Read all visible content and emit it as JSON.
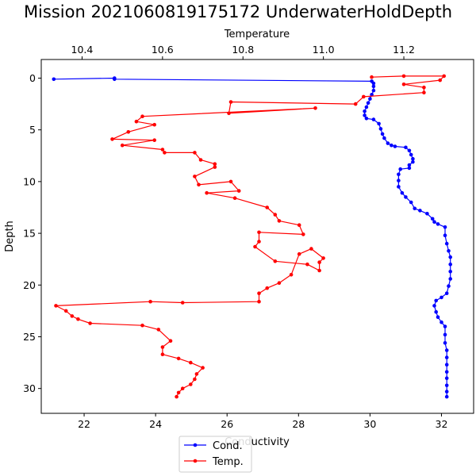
{
  "chart_data": {
    "type": "line",
    "title": "Mission 2021060819175172 UnderwaterHoldDepth",
    "ylabel": "Depth",
    "ylim": [
      32.4,
      -1.8
    ],
    "yticks": [
      "0",
      "5",
      "10",
      "15",
      "20",
      "25",
      "30"
    ],
    "bottom_axis": {
      "label": "Conductivity",
      "lim": [
        20.8,
        32.9
      ],
      "ticks": [
        "22",
        "24",
        "26",
        "28",
        "30",
        "32"
      ]
    },
    "top_axis": {
      "label": "Temperature",
      "lim": [
        10.2985,
        11.3735
      ],
      "ticks": [
        "10.4",
        "10.6",
        "10.8",
        "11.0",
        "11.2"
      ]
    },
    "legend": {
      "placement": "lower-center-outside"
    },
    "series": [
      {
        "name": "Cond.",
        "axis": "bottom",
        "color": "#0000ff",
        "points": [
          [
            21.15,
            0.1
          ],
          [
            22.85,
            0.0
          ],
          [
            22.85,
            0.1
          ],
          [
            30.05,
            0.3
          ],
          [
            30.1,
            0.5
          ],
          [
            30.1,
            0.8
          ],
          [
            30.1,
            1.2
          ],
          [
            30.05,
            1.6
          ],
          [
            30.0,
            2.0
          ],
          [
            29.95,
            2.4
          ],
          [
            29.9,
            2.8
          ],
          [
            29.85,
            3.2
          ],
          [
            29.85,
            3.6
          ],
          [
            29.9,
            3.9
          ],
          [
            30.1,
            4.0
          ],
          [
            30.25,
            4.4
          ],
          [
            30.3,
            4.9
          ],
          [
            30.35,
            5.4
          ],
          [
            30.4,
            5.8
          ],
          [
            30.5,
            6.3
          ],
          [
            30.6,
            6.5
          ],
          [
            30.7,
            6.6
          ],
          [
            31.0,
            6.7
          ],
          [
            31.1,
            7.0
          ],
          [
            31.15,
            7.4
          ],
          [
            31.2,
            7.8
          ],
          [
            31.2,
            8.1
          ],
          [
            31.1,
            8.4
          ],
          [
            31.1,
            8.7
          ],
          [
            30.85,
            8.8
          ],
          [
            30.8,
            9.3
          ],
          [
            30.8,
            9.9
          ],
          [
            30.8,
            10.5
          ],
          [
            30.9,
            11.1
          ],
          [
            31.0,
            11.5
          ],
          [
            31.15,
            12.0
          ],
          [
            31.25,
            12.6
          ],
          [
            31.4,
            12.8
          ],
          [
            31.6,
            13.1
          ],
          [
            31.75,
            13.6
          ],
          [
            31.8,
            13.9
          ],
          [
            31.9,
            14.1
          ],
          [
            32.1,
            14.4
          ],
          [
            32.1,
            15.2
          ],
          [
            32.15,
            16.0
          ],
          [
            32.2,
            16.7
          ],
          [
            32.25,
            17.3
          ],
          [
            32.25,
            18.0
          ],
          [
            32.25,
            18.7
          ],
          [
            32.25,
            19.4
          ],
          [
            32.2,
            20.1
          ],
          [
            32.15,
            20.8
          ],
          [
            32.0,
            21.2
          ],
          [
            31.85,
            21.5
          ],
          [
            31.8,
            22.0
          ],
          [
            31.85,
            22.6
          ],
          [
            31.9,
            23.1
          ],
          [
            32.0,
            23.6
          ],
          [
            32.1,
            24.0
          ],
          [
            32.1,
            24.8
          ],
          [
            32.1,
            25.6
          ],
          [
            32.15,
            26.3
          ],
          [
            32.15,
            27.0
          ],
          [
            32.15,
            27.7
          ],
          [
            32.15,
            28.4
          ],
          [
            32.15,
            29.0
          ],
          [
            32.15,
            29.7
          ],
          [
            32.15,
            30.3
          ],
          [
            32.15,
            30.8
          ]
        ]
      },
      {
        "name": "Temp.",
        "axis": "top",
        "color": "#ff0000",
        "points": [
          [
            11.12,
            -0.1
          ],
          [
            11.2,
            -0.2
          ],
          [
            11.3,
            -0.2
          ],
          [
            11.29,
            0.2
          ],
          [
            11.2,
            0.6
          ],
          [
            11.25,
            0.9
          ],
          [
            11.25,
            1.4
          ],
          [
            11.1,
            1.8
          ],
          [
            11.08,
            2.5
          ],
          [
            10.77,
            2.3
          ],
          [
            10.765,
            3.4
          ],
          [
            10.98,
            2.9
          ],
          [
            10.55,
            3.7
          ],
          [
            10.535,
            4.2
          ],
          [
            10.58,
            4.5
          ],
          [
            10.515,
            5.2
          ],
          [
            10.475,
            5.9
          ],
          [
            10.58,
            6.0
          ],
          [
            10.5,
            6.5
          ],
          [
            10.6,
            6.9
          ],
          [
            10.605,
            7.2
          ],
          [
            10.68,
            7.2
          ],
          [
            10.695,
            7.9
          ],
          [
            10.73,
            8.3
          ],
          [
            10.73,
            8.6
          ],
          [
            10.68,
            9.5
          ],
          [
            10.69,
            10.3
          ],
          [
            10.77,
            10.0
          ],
          [
            10.79,
            10.9
          ],
          [
            10.71,
            11.1
          ],
          [
            10.78,
            11.6
          ],
          [
            10.86,
            12.5
          ],
          [
            10.88,
            13.2
          ],
          [
            10.89,
            13.8
          ],
          [
            10.94,
            14.2
          ],
          [
            10.95,
            15.1
          ],
          [
            10.84,
            14.9
          ],
          [
            10.84,
            15.8
          ],
          [
            10.83,
            16.3
          ],
          [
            10.88,
            17.7
          ],
          [
            10.96,
            18.0
          ],
          [
            10.99,
            18.6
          ],
          [
            10.99,
            17.8
          ],
          [
            11.0,
            17.4
          ],
          [
            10.97,
            16.5
          ],
          [
            10.94,
            17.0
          ],
          [
            10.92,
            19.0
          ],
          [
            10.89,
            19.8
          ],
          [
            10.86,
            20.3
          ],
          [
            10.84,
            20.8
          ],
          [
            10.84,
            21.6
          ],
          [
            10.65,
            21.7
          ],
          [
            10.57,
            21.6
          ],
          [
            10.335,
            22.0
          ],
          [
            10.36,
            22.5
          ],
          [
            10.375,
            23.0
          ],
          [
            10.39,
            23.3
          ],
          [
            10.42,
            23.7
          ],
          [
            10.55,
            23.9
          ],
          [
            10.59,
            24.3
          ],
          [
            10.62,
            25.4
          ],
          [
            10.6,
            26.0
          ],
          [
            10.6,
            26.7
          ],
          [
            10.64,
            27.1
          ],
          [
            10.67,
            27.5
          ],
          [
            10.7,
            28.0
          ],
          [
            10.685,
            28.6
          ],
          [
            10.68,
            29.1
          ],
          [
            10.67,
            29.6
          ],
          [
            10.65,
            30.0
          ],
          [
            10.64,
            30.4
          ],
          [
            10.635,
            30.8
          ]
        ]
      }
    ]
  }
}
